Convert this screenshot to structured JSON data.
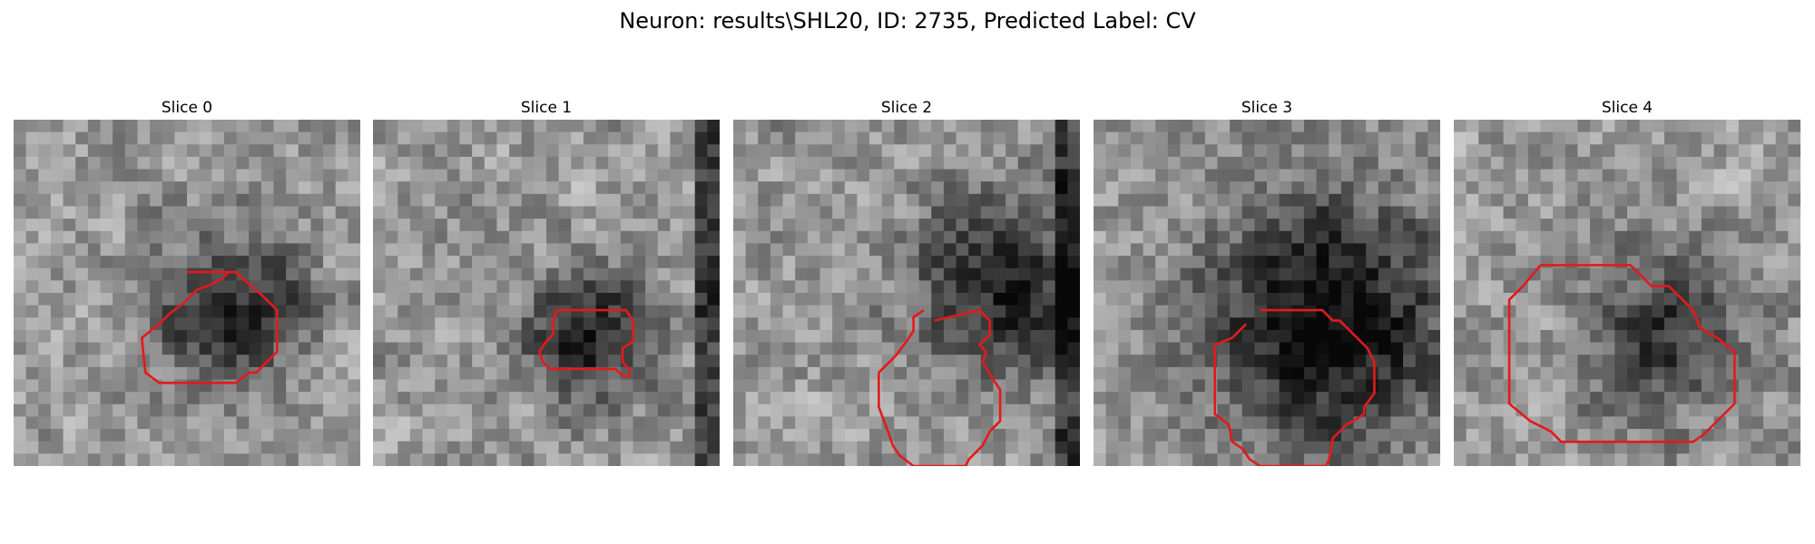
{
  "figure": {
    "title": "Neuron: results\\SHL20, ID: 2735, Predicted Label: CV"
  },
  "panels": [
    {
      "title": "Slice 0",
      "seed": 11,
      "dark_spot": [
        0.62,
        0.55
      ],
      "dark_radius": 0.16,
      "dark_strength": 0.45,
      "outline": [
        [
          0.5,
          0.44
        ],
        [
          0.64,
          0.44
        ],
        [
          0.72,
          0.51
        ],
        [
          0.76,
          0.55
        ],
        [
          0.76,
          0.67
        ],
        [
          0.72,
          0.71
        ],
        [
          0.7,
          0.73
        ],
        [
          0.68,
          0.73
        ],
        [
          0.64,
          0.76
        ],
        [
          0.42,
          0.76
        ],
        [
          0.38,
          0.73
        ],
        [
          0.37,
          0.63
        ],
        [
          0.42,
          0.59
        ],
        [
          0.45,
          0.56
        ],
        [
          0.49,
          0.53
        ],
        [
          0.53,
          0.49
        ],
        [
          0.56,
          0.48
        ],
        [
          0.6,
          0.46
        ],
        [
          0.62,
          0.44
        ]
      ]
    },
    {
      "title": "Slice 1",
      "seed": 23,
      "dark_spot": [
        0.62,
        0.63
      ],
      "dark_radius": 0.13,
      "dark_strength": 0.5,
      "outline": [
        [
          0.53,
          0.55
        ],
        [
          0.73,
          0.55
        ],
        [
          0.75,
          0.58
        ],
        [
          0.75,
          0.64
        ],
        [
          0.72,
          0.66
        ],
        [
          0.72,
          0.7
        ],
        [
          0.74,
          0.72
        ],
        [
          0.74,
          0.74
        ],
        [
          0.72,
          0.74
        ],
        [
          0.7,
          0.72
        ],
        [
          0.51,
          0.72
        ],
        [
          0.49,
          0.7
        ],
        [
          0.48,
          0.67
        ],
        [
          0.5,
          0.64
        ],
        [
          0.52,
          0.62
        ],
        [
          0.52,
          0.58
        ]
      ]
    },
    {
      "title": "Slice 2",
      "seed": 37,
      "dark_spot": [
        0.78,
        0.47
      ],
      "dark_radius": 0.18,
      "dark_strength": 0.5,
      "outline": [
        [
          0.58,
          0.58
        ],
        [
          0.71,
          0.55
        ],
        [
          0.74,
          0.58
        ],
        [
          0.74,
          0.62
        ],
        [
          0.71,
          0.65
        ],
        [
          0.73,
          0.67
        ],
        [
          0.72,
          0.7
        ],
        [
          0.75,
          0.75
        ],
        [
          0.77,
          0.78
        ],
        [
          0.77,
          0.87
        ],
        [
          0.74,
          0.9
        ],
        [
          0.72,
          0.94
        ],
        [
          0.68,
          0.98
        ],
        [
          0.67,
          1.0
        ],
        [
          0.52,
          1.0
        ],
        [
          0.48,
          0.97
        ],
        [
          0.46,
          0.94
        ],
        [
          0.45,
          0.91
        ],
        [
          0.42,
          0.83
        ],
        [
          0.42,
          0.73
        ],
        [
          0.47,
          0.68
        ],
        [
          0.5,
          0.64
        ],
        [
          0.52,
          0.61
        ],
        [
          0.52,
          0.57
        ],
        [
          0.55,
          0.55
        ]
      ]
    },
    {
      "title": "Slice 3",
      "seed": 53,
      "dark_spot": [
        0.68,
        0.58
      ],
      "dark_radius": 0.25,
      "dark_strength": 0.6,
      "outline": [
        [
          0.48,
          0.55
        ],
        [
          0.66,
          0.55
        ],
        [
          0.69,
          0.58
        ],
        [
          0.71,
          0.58
        ],
        [
          0.74,
          0.61
        ],
        [
          0.79,
          0.66
        ],
        [
          0.81,
          0.7
        ],
        [
          0.81,
          0.79
        ],
        [
          0.78,
          0.83
        ],
        [
          0.78,
          0.85
        ],
        [
          0.75,
          0.87
        ],
        [
          0.73,
          0.88
        ],
        [
          0.71,
          0.9
        ],
        [
          0.69,
          0.92
        ],
        [
          0.68,
          0.98
        ],
        [
          0.67,
          1.0
        ],
        [
          0.48,
          1.0
        ],
        [
          0.45,
          0.98
        ],
        [
          0.43,
          0.95
        ],
        [
          0.4,
          0.93
        ],
        [
          0.39,
          0.88
        ],
        [
          0.35,
          0.85
        ],
        [
          0.35,
          0.65
        ],
        [
          0.4,
          0.63
        ],
        [
          0.44,
          0.59
        ]
      ]
    },
    {
      "title": "Slice 4",
      "seed": 71,
      "dark_spot": [
        0.62,
        0.62
      ],
      "dark_radius": 0.17,
      "dark_strength": 0.4,
      "outline": [
        [
          0.25,
          0.42
        ],
        [
          0.51,
          0.42
        ],
        [
          0.57,
          0.48
        ],
        [
          0.62,
          0.48
        ],
        [
          0.65,
          0.51
        ],
        [
          0.69,
          0.55
        ],
        [
          0.71,
          0.6
        ],
        [
          0.76,
          0.63
        ],
        [
          0.81,
          0.67
        ],
        [
          0.81,
          0.82
        ],
        [
          0.77,
          0.86
        ],
        [
          0.72,
          0.91
        ],
        [
          0.69,
          0.93
        ],
        [
          0.31,
          0.93
        ],
        [
          0.28,
          0.9
        ],
        [
          0.22,
          0.87
        ],
        [
          0.16,
          0.82
        ],
        [
          0.16,
          0.52
        ],
        [
          0.2,
          0.48
        ]
      ]
    }
  ],
  "colors": {
    "outline": "#e31a1c",
    "background": "#ffffff"
  }
}
